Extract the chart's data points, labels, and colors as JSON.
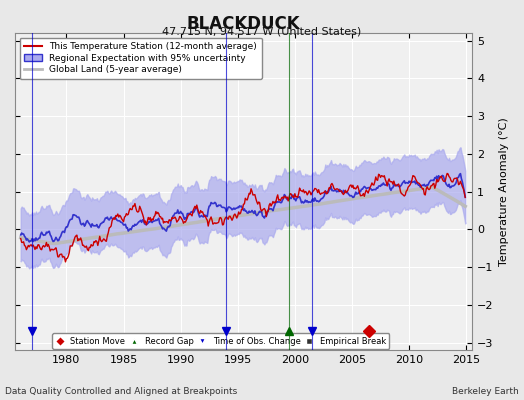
{
  "title": "BLACKDUCK",
  "subtitle": "47.715 N, 94.517 W (United States)",
  "xlabel_bottom": "Data Quality Controlled and Aligned at Breakpoints",
  "xlabel_right": "Berkeley Earth",
  "ylabel": "Temperature Anomaly (°C)",
  "xlim": [
    1975.5,
    2015.5
  ],
  "ylim": [
    -3.2,
    5.2
  ],
  "yticks": [
    -3,
    -2,
    -1,
    0,
    1,
    2,
    3,
    4,
    5
  ],
  "xticks": [
    1980,
    1985,
    1990,
    1995,
    2000,
    2005,
    2010,
    2015
  ],
  "bg_color": "#e8e8e8",
  "plot_bg_color": "#f0f0f0",
  "grid_color": "#ffffff",
  "station_color": "#cc0000",
  "regional_color": "#3333cc",
  "regional_fill_color": "#aaaaee",
  "global_color": "#bbbbbb",
  "legend_entries": [
    "This Temperature Station (12-month average)",
    "Regional Expectation with 95% uncertainty",
    "Global Land (5-year average)"
  ],
  "markers": [
    {
      "type": "station_move",
      "x": 2006.5,
      "color": "#cc0000",
      "marker": "D"
    },
    {
      "type": "record_gap",
      "x": 1999.5,
      "color": "#006600",
      "marker": "^"
    },
    {
      "type": "time_obs",
      "x": 1977.0,
      "color": "#0000cc",
      "marker": "v"
    },
    {
      "type": "time_obs",
      "x": 1994.0,
      "color": "#0000cc",
      "marker": "v"
    },
    {
      "type": "time_obs",
      "x": 2001.5,
      "color": "#0000cc",
      "marker": "v"
    }
  ]
}
